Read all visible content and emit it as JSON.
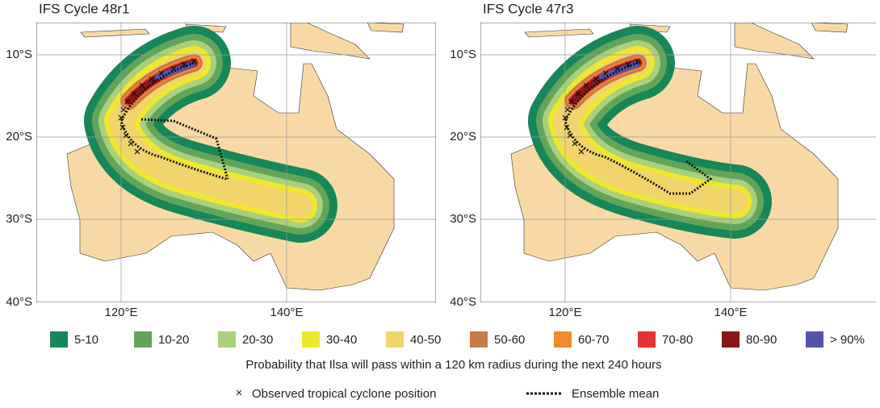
{
  "panels": [
    {
      "title": "IFS Cycle 48r1",
      "lat_labels": [
        "10°S",
        "20°S",
        "30°S",
        "40°S"
      ],
      "lon_labels": [
        "120°E",
        "140°E"
      ]
    },
    {
      "title": "IFS Cycle 47r3",
      "lat_labels": [
        "10°S",
        "20°S",
        "30°S",
        "40°S"
      ],
      "lon_labels": [
        "120°E",
        "140°E"
      ]
    }
  ],
  "legend": {
    "items": [
      {
        "label": "5-10",
        "color": "#17875a"
      },
      {
        "label": "10-20",
        "color": "#62a55a"
      },
      {
        "label": "20-30",
        "color": "#a9d07c"
      },
      {
        "label": "30-40",
        "color": "#eee82c"
      },
      {
        "label": "40-50",
        "color": "#f1d46c"
      },
      {
        "label": "50-60",
        "color": "#c87a48"
      },
      {
        "label": "60-70",
        "color": "#ef8a30"
      },
      {
        "label": "70-80",
        "color": "#e33333"
      },
      {
        "label": "80-90",
        "color": "#8a1717"
      },
      {
        "label": "> 90%",
        "color": "#5453ab"
      }
    ]
  },
  "caption": "Probability that Ilsa will pass within a 120 km radius during the next 240 hours",
  "key": {
    "observed_symbol": "×",
    "observed_label": "Observed tropical cyclone position",
    "mean_label": "Ensemble mean"
  }
}
